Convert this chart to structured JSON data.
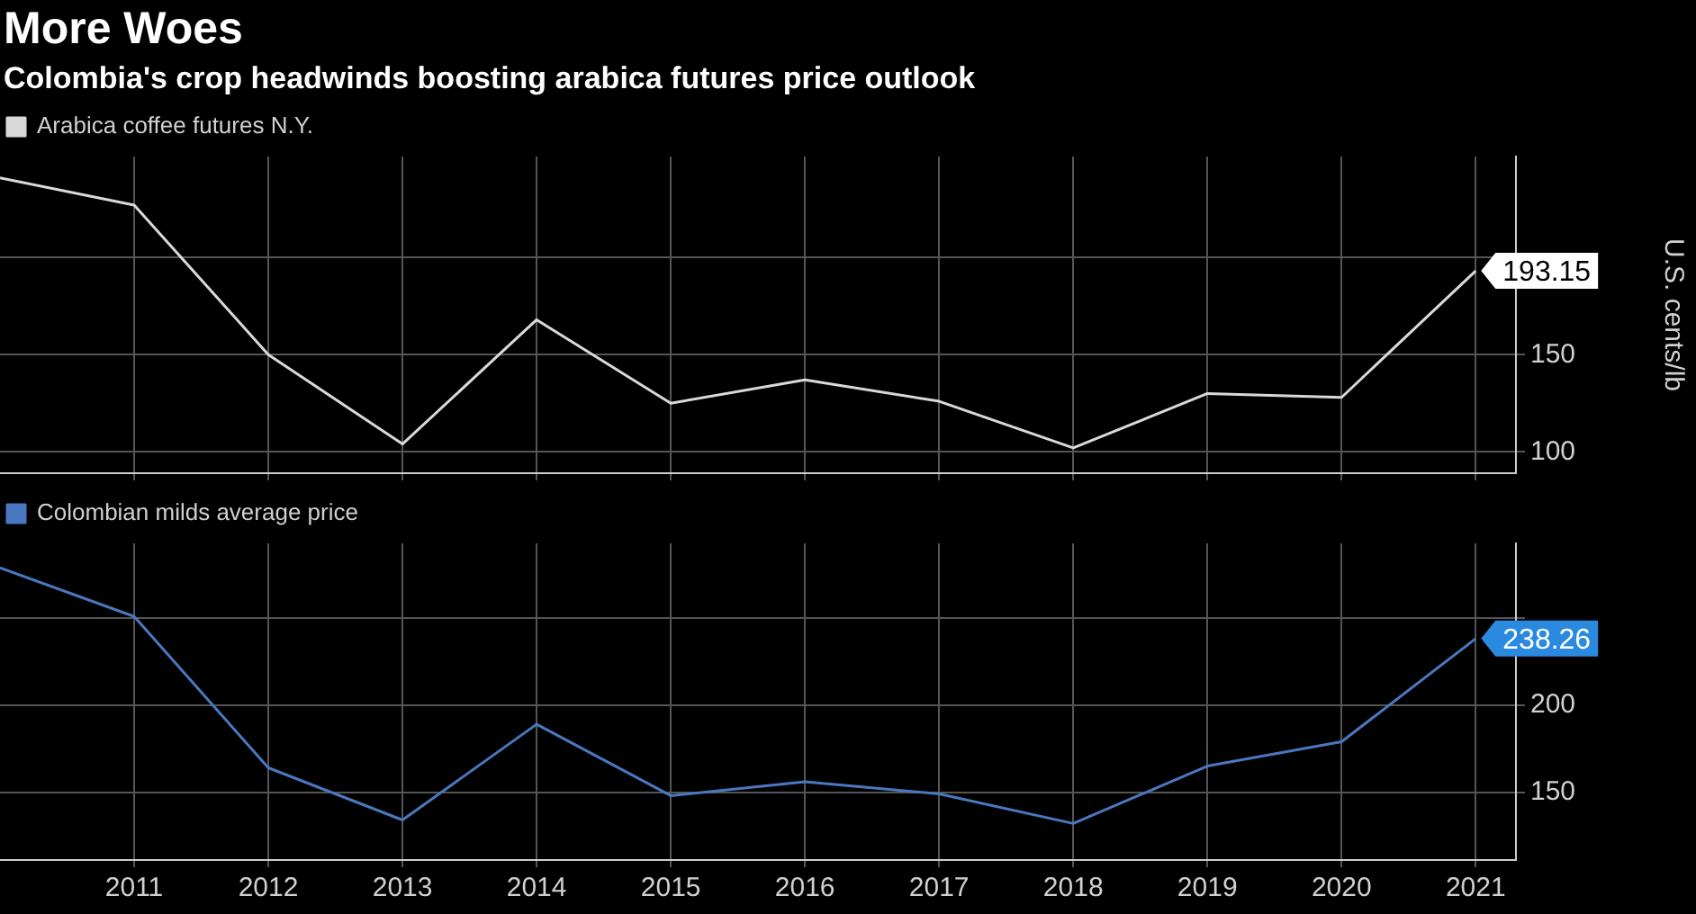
{
  "chart_data": [
    {
      "type": "line",
      "title": "More Woes",
      "subtitle": "Colombia's crop headwinds boosting arabica futures price outlook",
      "ylabel": "U.S. cents/lb",
      "x": [
        2010,
        2011,
        2012,
        2013,
        2014,
        2015,
        2016,
        2017,
        2018,
        2019,
        2020,
        2021
      ],
      "series": [
        {
          "name": "Arabica coffee futures N.Y.",
          "color": "#d9d9d9",
          "values": [
            241,
            227,
            150,
            104,
            168,
            125,
            137,
            126,
            102,
            130,
            128,
            193.15
          ],
          "value_labels": [
            null,
            null,
            null,
            null,
            null,
            null,
            null,
            null,
            null,
            null,
            null,
            "193.15"
          ]
        }
      ],
      "xlim": [
        2010,
        2021.3
      ],
      "xticks": [
        2011,
        2012,
        2013,
        2014,
        2015,
        2016,
        2017,
        2018,
        2019,
        2020,
        2021
      ],
      "ylim": [
        89,
        252
      ],
      "yticks": [
        100,
        150,
        {
          "value": 200,
          "label": null
        }
      ],
      "grid": true,
      "legend": "top left",
      "marker": "none",
      "tick_labels": "y"
    },
    {
      "type": "line",
      "x": [
        2010,
        2011,
        2012,
        2013,
        2014,
        2015,
        2016,
        2017,
        2018,
        2019,
        2020,
        2021
      ],
      "series": [
        {
          "name": "Colombian milds average price",
          "color": "#4a78c0",
          "values": [
            279,
            251,
            164,
            134,
            189,
            148,
            156,
            149,
            132,
            165,
            179,
            238.26
          ],
          "value_labels": [
            null,
            null,
            null,
            null,
            null,
            null,
            null,
            null,
            null,
            null,
            null,
            "238.26"
          ]
        }
      ],
      "xlim": [
        2010,
        2021.3
      ],
      "xticks": [
        2011,
        2012,
        2013,
        2014,
        2015,
        2016,
        2017,
        2018,
        2019,
        2020,
        2021
      ],
      "ylim": [
        111,
        293
      ],
      "yticks": [
        150,
        200,
        {
          "value": 250,
          "label": null
        }
      ],
      "grid": true,
      "legend": "top left",
      "marker": "none"
    }
  ]
}
